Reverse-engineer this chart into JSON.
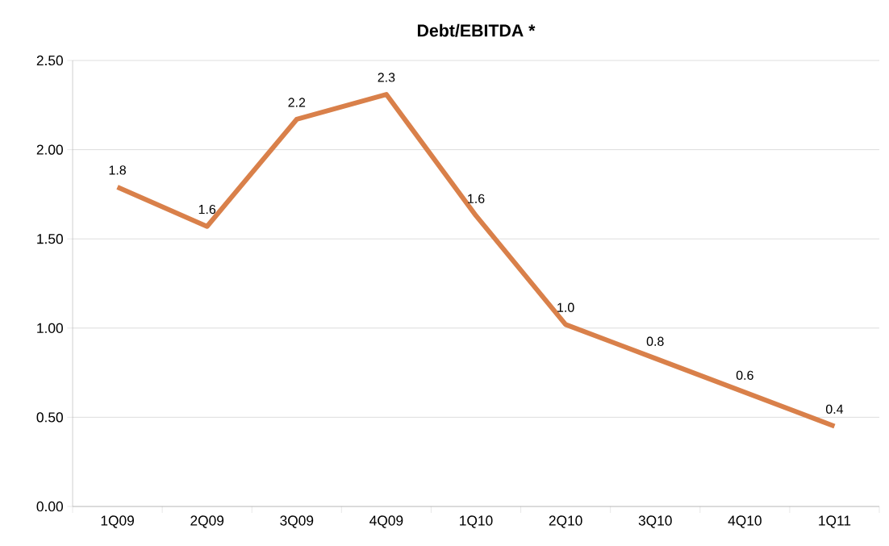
{
  "chart_data": {
    "type": "line",
    "title": "Debt/EBITDA *",
    "categories": [
      "1Q09",
      "2Q09",
      "3Q09",
      "4Q09",
      "1Q10",
      "2Q10",
      "3Q10",
      "4Q10",
      "1Q11"
    ],
    "series": [
      {
        "color": "#d9804a",
        "values": [
          1.79,
          1.57,
          2.17,
          2.31,
          1.63,
          1.02,
          0.83,
          0.64,
          0.45
        ],
        "value_labels": [
          "1.8",
          "1.6",
          "2.2",
          "2.3",
          "1.6",
          "1.0",
          "0.8",
          "0.6",
          "0.4"
        ]
      }
    ],
    "ylim": [
      0,
      2.5
    ],
    "yticks": [
      {
        "value": 0,
        "label": "0.00"
      },
      {
        "value": 0.5,
        "label": "0.50"
      },
      {
        "value": 1,
        "label": "1.00"
      },
      {
        "value": 1.5,
        "label": "1.50"
      },
      {
        "value": 2,
        "label": "2.00"
      },
      {
        "value": 2.5,
        "label": "2.50"
      }
    ],
    "grid": "y",
    "legend": false,
    "marker": "none",
    "line_style": "solid"
  }
}
